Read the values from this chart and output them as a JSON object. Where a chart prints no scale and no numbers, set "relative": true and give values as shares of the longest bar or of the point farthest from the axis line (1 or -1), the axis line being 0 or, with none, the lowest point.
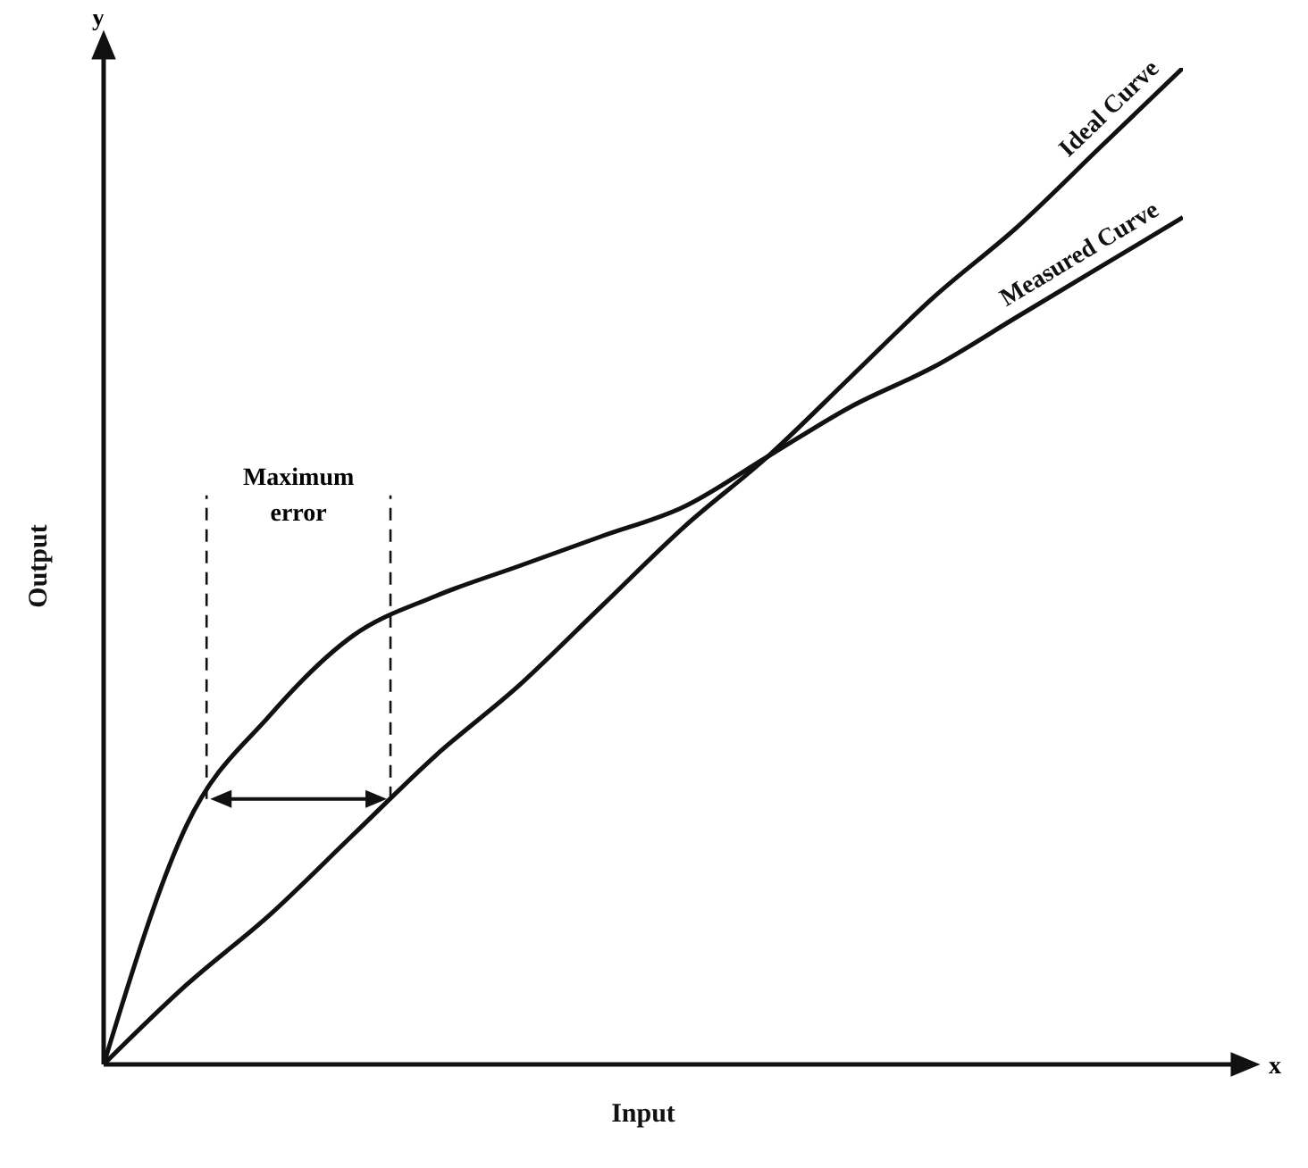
{
  "chart_data": {
    "type": "line",
    "relative": true,
    "xlabel": "Input",
    "ylabel": "Output",
    "categories": [
      null,
      null,
      null,
      null,
      null,
      null,
      null,
      null,
      null,
      null,
      null,
      null,
      null,
      null
    ],
    "series": [
      {
        "name": "Ideal Curve",
        "color": "#111111",
        "values": [
          0,
          0.08,
          0.15,
          0.23,
          0.31,
          0.38,
          0.46,
          0.54,
          0.61,
          0.69,
          0.77,
          0.84,
          0.92,
          1
        ]
      },
      {
        "name": "Measured Curve",
        "color": "#111111",
        "values": [
          0,
          0.24,
          0.35,
          0.43,
          0.47,
          0.5,
          0.53,
          0.56,
          0.61,
          0.66,
          0.7,
          0.75,
          0.8,
          0.85
        ]
      }
    ],
    "annotations": [
      "Maximum error",
      "x",
      "y"
    ],
    "legend": false,
    "grid": false,
    "marker": "none",
    "line_style": "solid"
  }
}
